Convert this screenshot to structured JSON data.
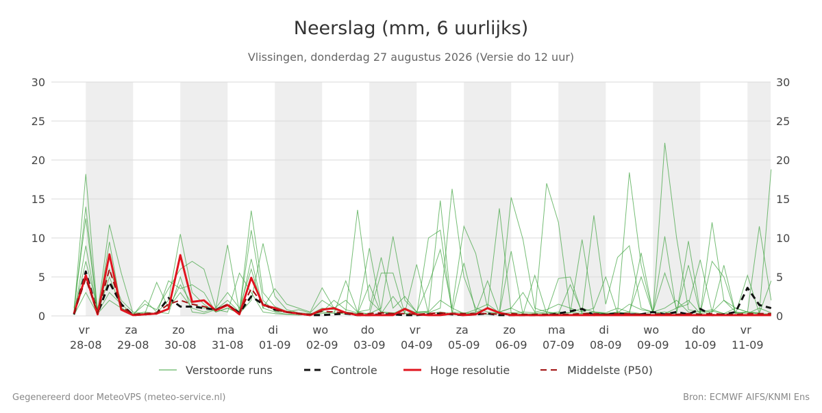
{
  "chart_data": {
    "type": "line",
    "title": "Neerslag (mm, 6 uurlijks)",
    "subtitle": "Vlissingen, donderdag 27 augustus 2026 (Versie do 12 uur)",
    "footer_left": "Gegenereerd door MeteoVPS (meteo-service.nl)",
    "footer_right": "Bron: ECMWF AIFS/KNMI Ens",
    "categories": [
      null,
      "vr 28-08",
      null,
      null,
      null,
      "za 29-08",
      null,
      null,
      null,
      "zo 30-08",
      null,
      null,
      null,
      "ma 31-08",
      null,
      null,
      null,
      "di 01-09",
      null,
      null,
      null,
      "wo 02-09",
      null,
      null,
      null,
      "do 03-09",
      null,
      null,
      null,
      "vr 04-09",
      null,
      null,
      null,
      "za 05-09",
      null,
      null,
      null,
      "zo 06-09",
      null,
      null,
      null,
      "ma 07-09",
      null,
      null,
      null,
      "di 08-09",
      null,
      null,
      null,
      "wo 09-09",
      null,
      null,
      null,
      "do 10-09",
      null,
      null,
      null,
      "vr 11-09",
      null,
      null
    ],
    "ylim": [
      0,
      30
    ],
    "yticks": [
      0,
      5,
      10,
      15,
      20,
      25,
      30
    ],
    "y2lim": [
      0,
      30
    ],
    "y2ticks": [
      0,
      5,
      10,
      15,
      20,
      25,
      30
    ],
    "grid": true,
    "legend": "bottom",
    "ensemble": {
      "name": "Verstoorde runs",
      "color": "#3aa13a",
      "members": [
        [
          0.5,
          18.2,
          0.3,
          5.0,
          1.0,
          0.2,
          0.5,
          0.3,
          1.0,
          4.0,
          1.5,
          1.0,
          0.8,
          2.0,
          0.5,
          13.5,
          3.0,
          1.2,
          0.6,
          0.3,
          0.2,
          1.0,
          0.8,
          0.5,
          13.6,
          2.0,
          0.5,
          0.3,
          1.0,
          0.4,
          0.5,
          2.0,
          1.0,
          0.3,
          0.8,
          1.5,
          0.4,
          15.2,
          9.8,
          1.0,
          0.5,
          0.3,
          0.4,
          1.0,
          0.5,
          0.2,
          0.4,
          1.5,
          0.8,
          0.5,
          1.0,
          2.0,
          0.5,
          0.3,
          12.0,
          2.0,
          0.5,
          0.3,
          1.0,
          0.4
        ],
        [
          0.2,
          9.0,
          0.5,
          11.7,
          5.5,
          0.3,
          0.2,
          0.4,
          2.0,
          10.5,
          3.0,
          1.5,
          0.5,
          1.0,
          0.3,
          2.0,
          9.3,
          2.5,
          0.8,
          0.4,
          0.3,
          0.5,
          2.0,
          0.8,
          0.4,
          0.3,
          1.0,
          10.2,
          2.0,
          0.5,
          0.6,
          14.8,
          0.5,
          0.4,
          0.3,
          0.2,
          0.5,
          1.0,
          0.3,
          0.2,
          17.0,
          12.0,
          0.5,
          0.3,
          0.5,
          0.4,
          1.0,
          0.5,
          0.3,
          0.5,
          22.2,
          10.0,
          0.8,
          0.5,
          0.6,
          0.3,
          0.4,
          0.5,
          0.3,
          0.2
        ],
        [
          1.0,
          12.5,
          0.4,
          3.0,
          1.5,
          0.2,
          1.5,
          0.8,
          3.5,
          6.0,
          7.0,
          6.0,
          1.0,
          9.1,
          0.5,
          11.0,
          2.0,
          0.6,
          0.5,
          0.8,
          0.4,
          2.0,
          1.0,
          0.5,
          0.3,
          8.7,
          0.5,
          0.4,
          0.3,
          0.5,
          0.4,
          1.0,
          16.3,
          5.0,
          1.0,
          0.5,
          0.3,
          0.4,
          0.5,
          0.4,
          0.3,
          0.5,
          0.4,
          9.8,
          0.5,
          0.3,
          0.4,
          18.4,
          6.5,
          0.4,
          0.5,
          0.3,
          9.6,
          0.5,
          0.8,
          0.3,
          1.0,
          0.5,
          0.4,
          18.8
        ],
        [
          0.3,
          7.0,
          1.0,
          6.0,
          2.0,
          0.5,
          0.3,
          4.3,
          1.0,
          3.0,
          1.0,
          0.5,
          1.0,
          3.0,
          1.0,
          6.0,
          1.0,
          3.5,
          1.5,
          1.0,
          0.5,
          3.6,
          1.0,
          2.0,
          0.5,
          0.8,
          7.5,
          1.0,
          2.5,
          0.5,
          4.0,
          8.5,
          1.0,
          11.5,
          8.0,
          1.0,
          0.5,
          1.0,
          3.0,
          0.5,
          0.8,
          1.5,
          1.0,
          0.5,
          12.9,
          1.5,
          7.5,
          9.0,
          1.0,
          0.5,
          5.5,
          1.0,
          1.5,
          7.2,
          0.5,
          2.0,
          1.0,
          0.5,
          11.5,
          2.0
        ],
        [
          0.1,
          3.0,
          0.2,
          9.5,
          1.0,
          0.1,
          2.0,
          0.5,
          0.3,
          5.0,
          0.5,
          0.3,
          0.8,
          0.5,
          5.5,
          3.0,
          0.5,
          0.3,
          0.2,
          0.1,
          0.2,
          0.5,
          0.3,
          4.5,
          0.5,
          0.2,
          5.5,
          5.5,
          0.3,
          0.1,
          10.0,
          11.0,
          0.3,
          0.2,
          0.5,
          1.0,
          13.8,
          0.4,
          0.2,
          0.3,
          0.5,
          0.3,
          4.0,
          0.5,
          1.0,
          5.0,
          0.3,
          0.5,
          5.0,
          0.3,
          10.2,
          0.5,
          6.5,
          0.3,
          7.0,
          5.0,
          0.3,
          0.5,
          0.2,
          0.3
        ],
        [
          0.5,
          14.0,
          0.3,
          2.0,
          1.0,
          0.2,
          0.3,
          0.2,
          4.5,
          3.5,
          4.0,
          3.0,
          0.5,
          1.0,
          0.3,
          7.3,
          1.0,
          0.5,
          0.2,
          0.3,
          0.2,
          0.3,
          0.5,
          0.2,
          0.3,
          4.0,
          0.3,
          2.5,
          0.4,
          6.6,
          0.3,
          0.5,
          0.3,
          6.8,
          0.5,
          4.5,
          0.3,
          8.3,
          0.2,
          5.2,
          0.3,
          4.8,
          5.0,
          0.3,
          0.5,
          0.3,
          0.5,
          0.3,
          8.1,
          0.4,
          0.3,
          1.0,
          2.0,
          0.3,
          0.5,
          6.5,
          0.3,
          5.2,
          0.3,
          4.5
        ]
      ]
    },
    "series": [
      {
        "name": "Controle",
        "color": "#111111",
        "dashed": true,
        "values": [
          0.2,
          5.7,
          0.3,
          4.3,
          1.5,
          0.1,
          0.2,
          0.3,
          2.3,
          1.2,
          1.2,
          1.0,
          0.8,
          1.4,
          0.4,
          2.5,
          1.5,
          0.8,
          0.5,
          0.3,
          0.1,
          0.1,
          0.2,
          0.3,
          0.1,
          0.1,
          0.2,
          0.2,
          0.1,
          0.1,
          0.2,
          0.3,
          0.2,
          0.1,
          0.2,
          0.3,
          0.1,
          0.1,
          0.1,
          0.1,
          0.1,
          0.3,
          0.6,
          0.9,
          0.1,
          0.2,
          0.3,
          0.2,
          0.2,
          0.5,
          0.2,
          0.5,
          0.2,
          0.9,
          0.1,
          0.2,
          0.5,
          3.6,
          1.4,
          1.0
        ]
      },
      {
        "name": "Hoge resolutie",
        "color": "#e0141e",
        "dashed": false,
        "values": [
          0.3,
          5.2,
          0.2,
          7.9,
          0.8,
          0.1,
          0.2,
          0.3,
          0.9,
          7.8,
          1.8,
          2.0,
          0.7,
          1.4,
          0.2,
          4.9,
          1.4,
          1.0,
          0.5,
          0.3,
          0.1,
          0.8,
          1.0,
          0.4,
          0.1,
          0.1,
          0.1,
          0.1,
          0.9,
          0.2,
          0.1,
          0.1,
          0.3,
          0.1,
          0.2,
          1.0,
          0.4,
          0.1,
          0.1,
          0.1,
          0.1,
          0.1,
          0.1,
          0.1,
          0.1,
          0.1,
          0.1,
          0.1,
          0.1,
          0.1,
          0.1,
          0.1,
          0.1,
          0.1,
          0.1,
          0.1,
          0.1,
          0.1,
          0.1,
          0.1
        ]
      },
      {
        "name": "Middelste (P50)",
        "color": "#a01010",
        "dashed": true,
        "values": [
          0.3,
          4.8,
          0.3,
          6.0,
          1.2,
          0.2,
          0.3,
          0.4,
          1.5,
          2.0,
          1.5,
          1.2,
          0.8,
          1.5,
          0.4,
          3.5,
          1.5,
          0.8,
          0.5,
          0.3,
          0.2,
          0.6,
          0.5,
          0.4,
          0.3,
          0.3,
          0.4,
          0.3,
          0.3,
          0.2,
          0.3,
          0.4,
          0.3,
          0.3,
          0.3,
          0.3,
          0.2,
          0.3,
          0.2,
          0.2,
          0.2,
          0.2,
          0.2,
          0.3,
          0.3,
          0.2,
          0.3,
          0.3,
          0.2,
          0.2,
          0.3,
          0.2,
          0.3,
          0.2,
          0.3,
          0.2,
          0.2,
          0.3,
          0.3,
          0.3
        ]
      }
    ]
  }
}
